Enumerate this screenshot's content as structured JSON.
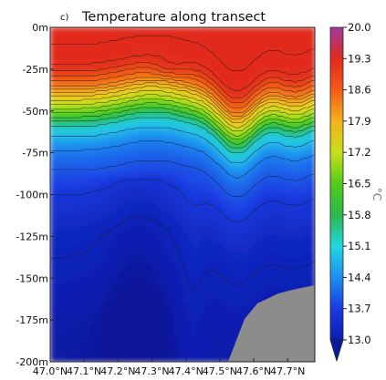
{
  "chart_data": {
    "type": "heatmap",
    "panel_label": "c)",
    "title": "Temperature along transect",
    "xlabel": "",
    "ylabel": "",
    "x_ticks": [
      "47.0°N",
      "47.1°N",
      "47.2°N",
      "47.3°N",
      "47.4°N",
      "47.5°N",
      "47.6°N",
      "47.7°N"
    ],
    "x_tick_values": [
      47.0,
      47.1,
      47.2,
      47.3,
      47.4,
      47.5,
      47.6,
      47.7
    ],
    "xlim": [
      47.0,
      47.78
    ],
    "y_ticks": [
      "0m",
      "-25m",
      "-50m",
      "-75m",
      "-100m",
      "-125m",
      "-150m",
      "-175m",
      "-200m"
    ],
    "y_tick_values": [
      0,
      -25,
      -50,
      -75,
      -100,
      -125,
      -150,
      -175,
      -200
    ],
    "ylim": [
      -200,
      0
    ],
    "colorbar": {
      "ticks": [
        "20.0",
        "19.3",
        "18.6",
        "17.9",
        "17.2",
        "16.5",
        "15.8",
        "15.1",
        "14.4",
        "13.7",
        "13.0"
      ],
      "tick_values": [
        20.0,
        19.3,
        18.6,
        17.9,
        17.2,
        16.5,
        15.8,
        15.1,
        14.4,
        13.7,
        13.0
      ],
      "range": [
        13.0,
        20.0
      ],
      "unit": "°C",
      "extend": "min"
    },
    "grid": false,
    "colormap": "jet",
    "colors": {
      "land": "#8c8c8c",
      "contour_lines": "#1a1a1a"
    },
    "approx_temperature_profile": {
      "depth": [
        0,
        -10,
        -20,
        -25,
        -30,
        -35,
        -40,
        -45,
        -50,
        -55,
        -60,
        -70,
        -80,
        -100,
        -125,
        -150,
        -175,
        -200
      ],
      "temperature_center": [
        19.2,
        19.1,
        18.9,
        18.6,
        18.1,
        17.6,
        16.8,
        16.2,
        15.6,
        15.0,
        14.5,
        14.1,
        13.8,
        13.4,
        13.15,
        13.05,
        12.98,
        12.95
      ]
    }
  }
}
